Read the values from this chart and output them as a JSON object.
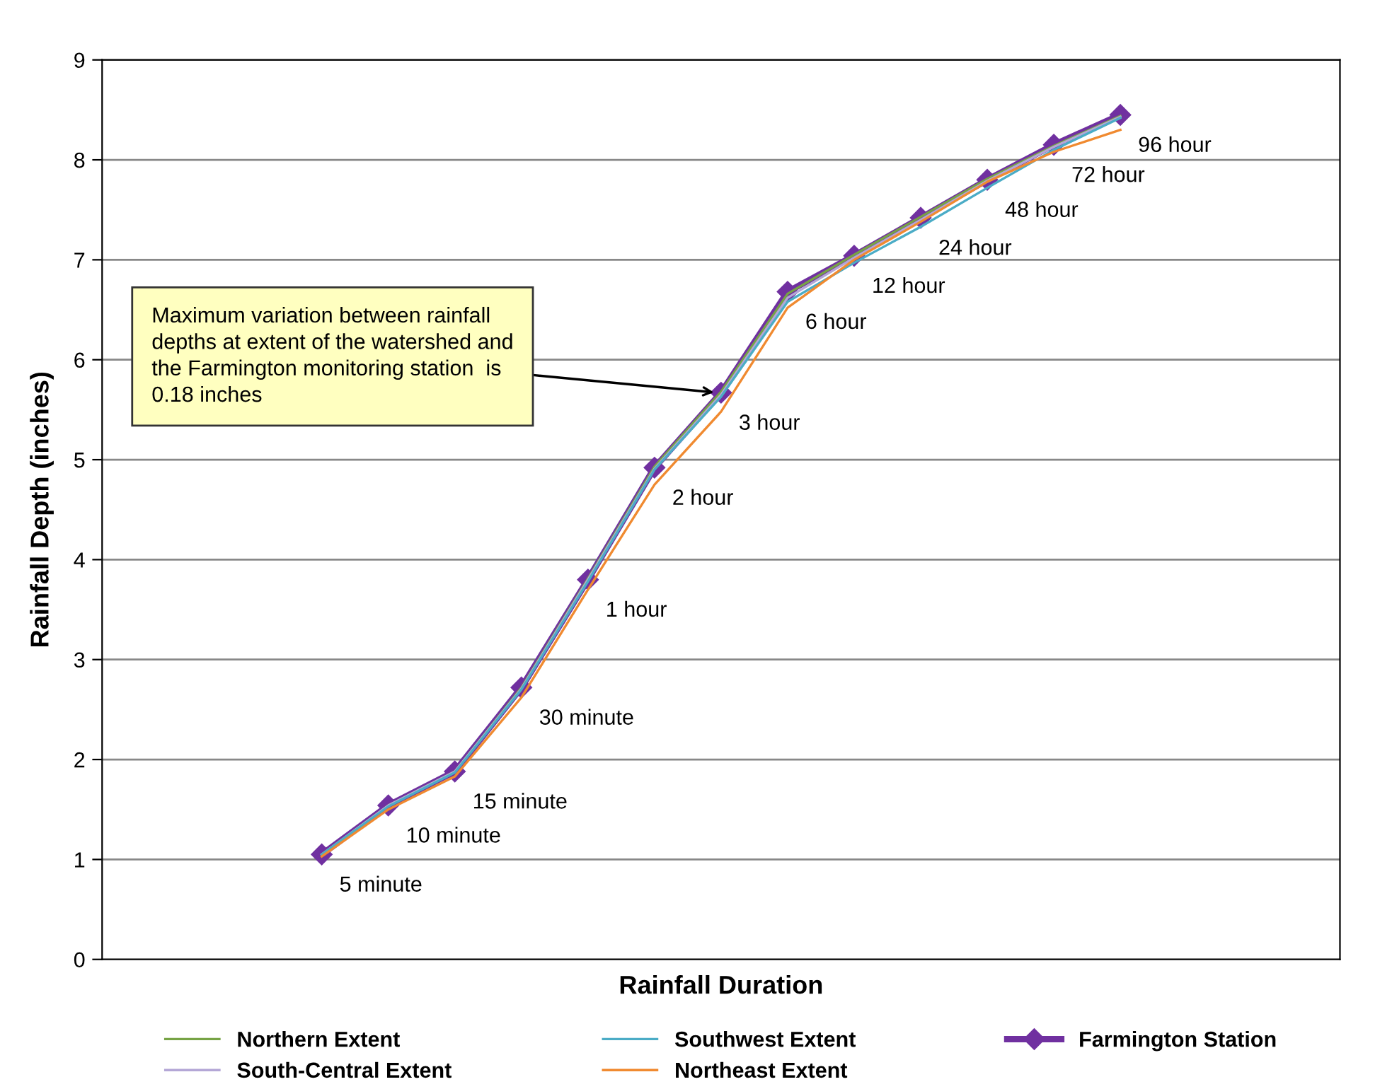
{
  "chart_data": {
    "type": "line",
    "xlabel": "Rainfall Duration",
    "ylabel": "Rainfall Depth (inches)",
    "categories": [
      null,
      null,
      null,
      null,
      null,
      null,
      null,
      null,
      null,
      null,
      null,
      null,
      null
    ],
    "ylim": [
      0,
      9
    ],
    "yticks": [
      0,
      1,
      2,
      3,
      4,
      5,
      6,
      7,
      8,
      9
    ],
    "grid": "y",
    "legend": "bottom",
    "tick_labels": "y",
    "series": [
      {
        "name": "Northern Extent",
        "color": "#77a345",
        "marker": "none",
        "values": [
          1.05,
          1.54,
          1.88,
          2.72,
          3.81,
          4.93,
          5.68,
          6.66,
          7.05,
          7.43,
          7.81,
          8.14,
          8.44
        ]
      },
      {
        "name": "South-Central Extent",
        "color": "#b4a7d6",
        "marker": "none",
        "values": [
          1.05,
          1.54,
          1.88,
          2.71,
          3.8,
          4.91,
          5.65,
          6.62,
          7.02,
          7.4,
          7.79,
          8.13,
          8.43
        ]
      },
      {
        "name": "Southwest Extent",
        "color": "#4bacc6",
        "marker": "none",
        "values": [
          1.05,
          1.53,
          1.87,
          2.7,
          3.78,
          4.9,
          5.63,
          6.58,
          6.97,
          7.33,
          7.72,
          8.1,
          8.42
        ]
      },
      {
        "name": "Northeast Extent",
        "color": "#f08a30",
        "marker": "none",
        "values": [
          1.03,
          1.5,
          1.83,
          2.62,
          3.7,
          4.75,
          5.48,
          6.52,
          7.0,
          7.38,
          7.78,
          8.08,
          8.3
        ]
      },
      {
        "name": "Farmington Station",
        "color": "#7030a0",
        "marker": "diamond",
        "values": [
          1.05,
          1.54,
          1.88,
          2.72,
          3.8,
          4.92,
          5.67,
          6.68,
          7.04,
          7.42,
          7.8,
          8.15,
          8.45
        ]
      }
    ],
    "annotations": [
      "Maximum variation between rainfall\ndepths at extent of the watershed and\nthe Farmington monitoring station  is\n0.18 inches",
      "5 minute",
      "10 minute",
      "15 minute",
      "30 minute",
      "1 hour",
      "2 hour",
      "3 hour",
      "6 hour",
      "12 hour",
      "24 hour",
      "48 hour",
      "72 hour",
      "96 hour"
    ]
  }
}
